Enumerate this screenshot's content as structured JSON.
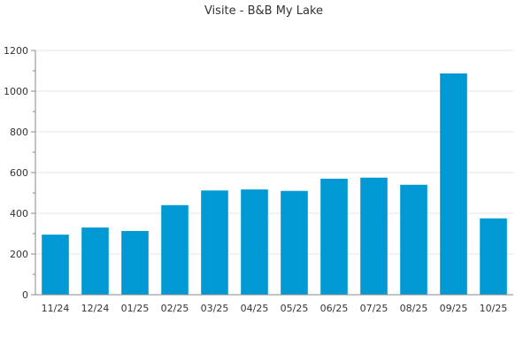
{
  "chart_data": {
    "type": "bar",
    "title": "Visite - B&B My Lake",
    "xlabel": "",
    "ylabel": "",
    "categories": [
      "11/24",
      "12/24",
      "01/25",
      "02/25",
      "03/25",
      "04/25",
      "05/25",
      "06/25",
      "07/25",
      "08/25",
      "09/25",
      "10/25"
    ],
    "values": [
      295,
      330,
      313,
      440,
      512,
      517,
      510,
      570,
      575,
      540,
      1087,
      375
    ],
    "ylim": [
      0,
      1200
    ],
    "yticks": [
      0,
      200,
      400,
      600,
      800,
      1000,
      1200
    ],
    "grid": true,
    "legend": "none",
    "bar_color": "#0099d4"
  }
}
